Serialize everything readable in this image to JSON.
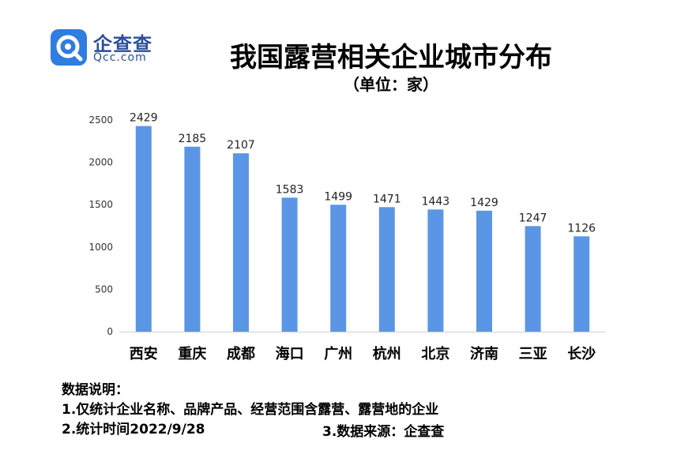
{
  "brand": {
    "name_cn": "企查查",
    "name_en": "Qcc.com",
    "logo_color": "#2f7de1"
  },
  "chart_data": {
    "type": "bar",
    "title": "我国露营相关企业城市分布",
    "subtitle": "（单位：家）",
    "categories": [
      "西安",
      "重庆",
      "成都",
      "海口",
      "广州",
      "杭州",
      "北京",
      "济南",
      "三亚",
      "长沙"
    ],
    "values": [
      2429,
      2185,
      2107,
      1583,
      1499,
      1471,
      1443,
      1429,
      1247,
      1126
    ],
    "yticks": [
      0,
      500,
      1000,
      1500,
      2000,
      2500
    ],
    "ylim": [
      0,
      2500
    ],
    "xlabel": "",
    "ylabel": "",
    "grid": false,
    "bar_color": "#5b96e6"
  },
  "notes": {
    "heading": "数据说明：",
    "line1": "1.仅统计企业名称、品牌产品、经营范围含露营、露营地的企业",
    "line2": "2.统计时间2022/9/28",
    "line3": "3.数据来源：企查查"
  }
}
